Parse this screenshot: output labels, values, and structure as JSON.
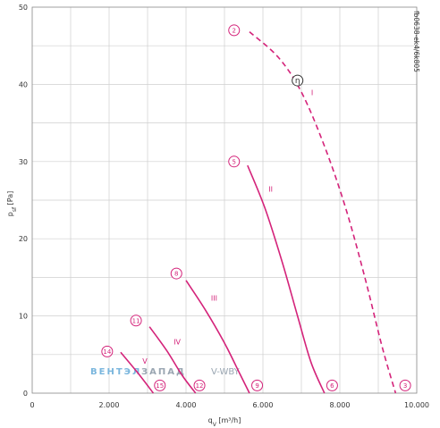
{
  "chart_data": {
    "type": "line",
    "title": "",
    "xlabel": "q",
    "xlabel_sub": "V",
    "xlabel_unit": " [m³/h]",
    "ylabel": "p",
    "ylabel_sub": "sf",
    "ylabel_unit": " [Pa]",
    "xlim": [
      0,
      10000
    ],
    "ylim": [
      0,
      50
    ],
    "x_ticks": [
      0,
      2000,
      4000,
      6000,
      8000,
      10000
    ],
    "x_tick_labels": [
      "0",
      "2.000",
      "4.000",
      "6.000",
      "8.000",
      "10.000"
    ],
    "y_ticks": [
      0,
      10,
      20,
      30,
      40,
      50
    ],
    "y_tick_labels": [
      "0",
      "10",
      "20",
      "30",
      "40",
      "50"
    ],
    "x_grid_step": 1000,
    "y_grid_step": 5,
    "grid": true,
    "curve_color": "#d4237a",
    "code": "fb0638-ek4/6k805",
    "eta_symbol": "η",
    "series": [
      {
        "name": "I",
        "dashed": true,
        "x": [
          5650,
          6400,
          7000,
          7600,
          8150,
          8650,
          9100,
          9450
        ],
        "y": [
          46.8,
          43.5,
          39.0,
          32.0,
          24.0,
          15.0,
          6.0,
          0
        ]
      },
      {
        "name": "II",
        "x": [
          5600,
          6050,
          6500,
          6900,
          7250,
          7600
        ],
        "y": [
          29.5,
          24.0,
          17.0,
          10.0,
          4.0,
          0
        ]
      },
      {
        "name": "III",
        "x": [
          4000,
          4500,
          5000,
          5400,
          5650
        ],
        "y": [
          14.6,
          10.8,
          6.5,
          2.5,
          0
        ]
      },
      {
        "name": "IV",
        "x": [
          3050,
          3500,
          3900,
          4250
        ],
        "y": [
          8.6,
          5.5,
          2.3,
          0
        ]
      },
      {
        "name": "V",
        "x": [
          2300,
          2750,
          3150
        ],
        "y": [
          5.3,
          2.6,
          0
        ]
      }
    ],
    "curve_labels": [
      {
        "text": "I",
        "x": 7280,
        "y": 38.6
      },
      {
        "text": "II",
        "x": 6200,
        "y": 26.1
      },
      {
        "text": "III",
        "x": 4730,
        "y": 12.0
      },
      {
        "text": "IV",
        "x": 3770,
        "y": 6.3
      },
      {
        "text": "V",
        "x": 2930,
        "y": 3.8
      }
    ],
    "point_markers": [
      {
        "text": "2",
        "x": 5250,
        "y": 47.0
      },
      {
        "text": "5",
        "x": 5250,
        "y": 30.0
      },
      {
        "text": "8",
        "x": 3750,
        "y": 15.5
      },
      {
        "text": "11",
        "x": 2700,
        "y": 9.4
      },
      {
        "text": "14",
        "x": 1950,
        "y": 5.4
      },
      {
        "text": "3",
        "x": 9700,
        "y": 1.0
      },
      {
        "text": "6",
        "x": 7800,
        "y": 1.0
      },
      {
        "text": "9",
        "x": 5850,
        "y": 1.0
      },
      {
        "text": "12",
        "x": 4350,
        "y": 1.0
      },
      {
        "text": "15",
        "x": 3320,
        "y": 1.0
      }
    ],
    "eta_point": {
      "x": 6900,
      "y": 40.5
    }
  },
  "watermark": {
    "brand_left": "ВЕНТЭЛ",
    "brand_right": "ЗАПАД",
    "brand_left_color": "#7ab6dd",
    "brand_right_color": "#9aa6b2",
    "suffix": "V-WBY"
  }
}
